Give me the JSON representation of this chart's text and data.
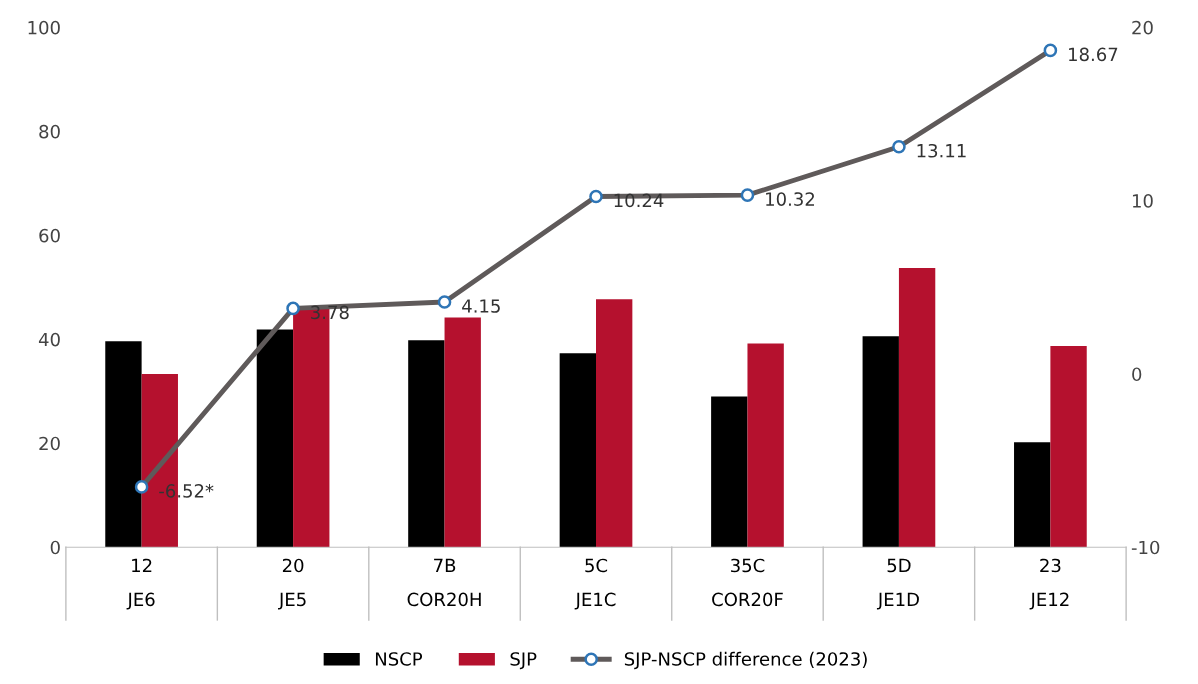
{
  "chart_data": {
    "type": "bar",
    "categories": [
      "12\nJE6",
      "20\nJE5",
      "7B\nCOR20H",
      "5C\nJE1C",
      "35C\nCOR20F",
      "5D\nJE1D",
      "23\nJE12"
    ],
    "series": [
      {
        "name": "NSCP",
        "color": "#000000",
        "values": [
          39.6,
          41.9,
          39.8,
          37.3,
          29.0,
          40.6,
          20.2
        ]
      },
      {
        "name": "SJP",
        "color": "#b5112e",
        "values": [
          33.3,
          45.8,
          44.2,
          47.7,
          39.2,
          53.7,
          38.7
        ]
      },
      {
        "name": "SJP-NSCP difference (2023)",
        "type": "line",
        "axis": "y2",
        "color": "#5f5a5a",
        "marker": "circle",
        "values": [
          -6.52,
          3.78,
          4.15,
          10.24,
          10.32,
          13.11,
          18.67
        ],
        "value_labels": [
          "-6.52*",
          "3.78",
          "4.15",
          "10.24",
          "10.32",
          "13.11",
          "18.67"
        ]
      }
    ],
    "ylim": [
      0,
      100
    ],
    "yticks": [
      0,
      20,
      40,
      60,
      80,
      100
    ],
    "y2lim": [
      -10,
      20
    ],
    "y2ticks": [
      -10,
      0,
      10,
      20
    ],
    "grid": false,
    "legend": "bottom"
  }
}
